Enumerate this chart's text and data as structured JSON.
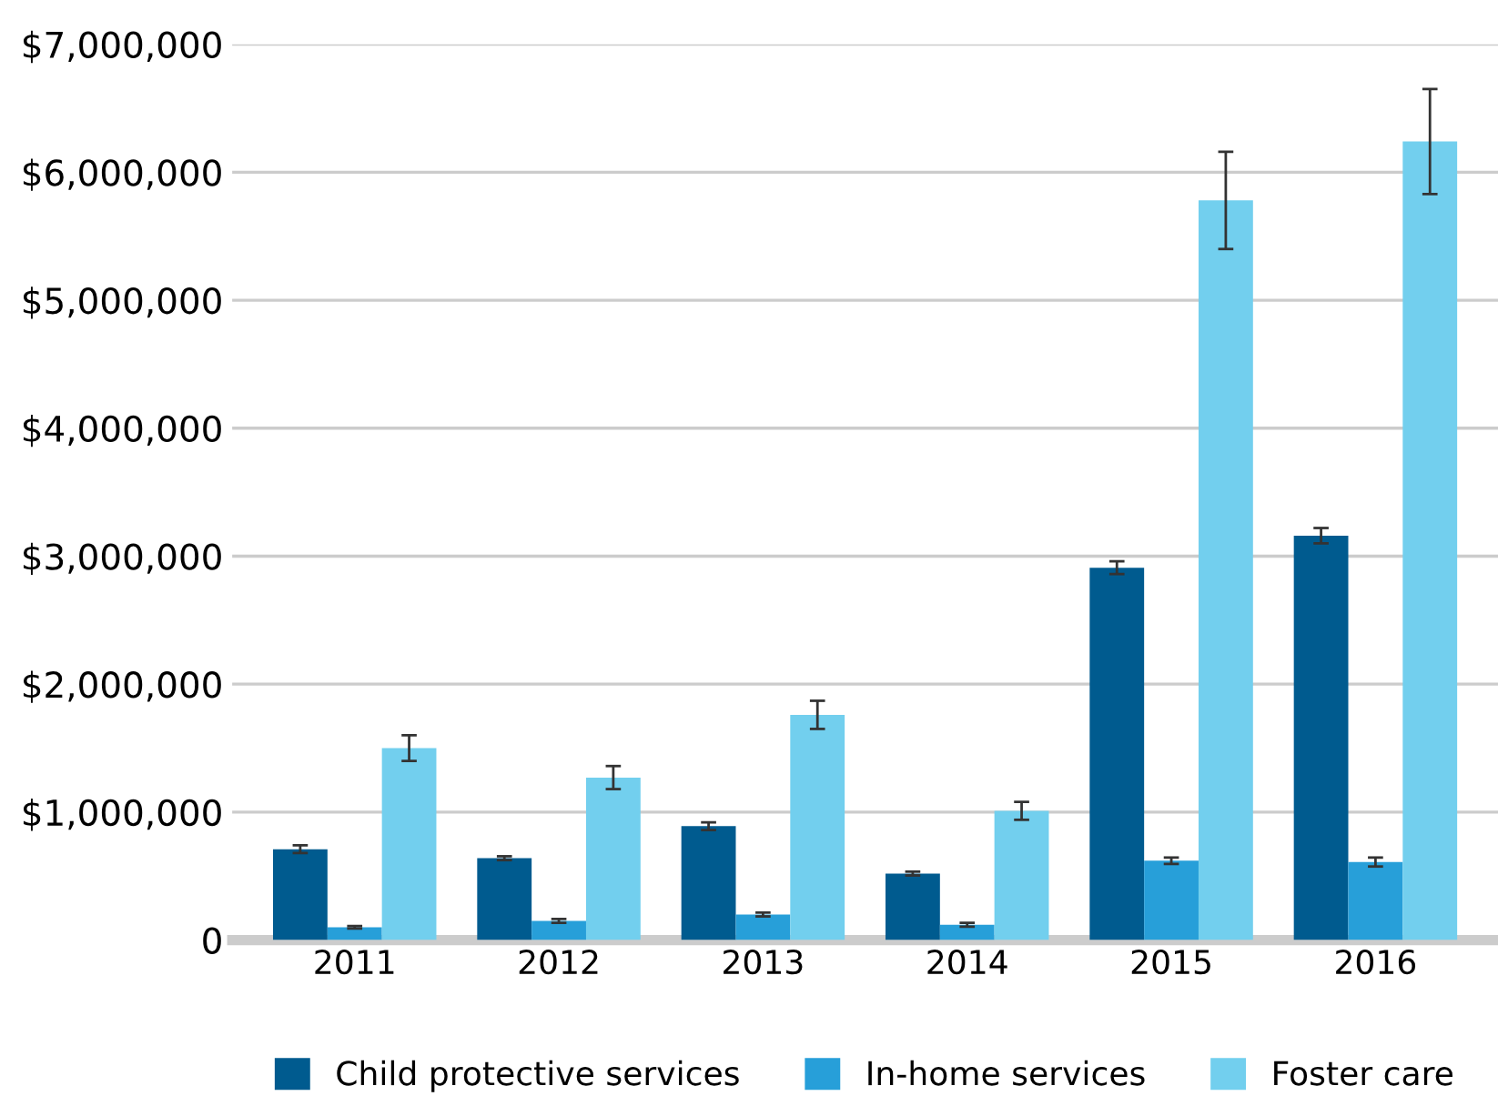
{
  "chart_data": {
    "type": "bar",
    "categories": [
      "2011",
      "2012",
      "2013",
      "2014",
      "2015",
      "2016"
    ],
    "series": [
      {
        "name": "Child protective services",
        "color": "#005b8f",
        "values": [
          710000,
          640000,
          890000,
          520000,
          2910000,
          3160000
        ],
        "errors": [
          30000,
          15000,
          30000,
          15000,
          50000,
          60000
        ]
      },
      {
        "name": "In-home services",
        "color": "#279fd9",
        "values": [
          100000,
          150000,
          200000,
          120000,
          620000,
          610000
        ],
        "errors": [
          10000,
          15000,
          15000,
          15000,
          25000,
          35000
        ]
      },
      {
        "name": "Foster care",
        "color": "#72cfee",
        "values": [
          1500000,
          1270000,
          1760000,
          1010000,
          5780000,
          6240000
        ],
        "errors": [
          100000,
          90000,
          110000,
          70000,
          380000,
          410000
        ]
      }
    ],
    "ylim": [
      0,
      7000000
    ],
    "yticks": [
      {
        "value": 0,
        "label": "0"
      },
      {
        "value": 1000000,
        "label": "$1,000,000"
      },
      {
        "value": 2000000,
        "label": "$2,000,000"
      },
      {
        "value": 3000000,
        "label": "$3,000,000"
      },
      {
        "value": 4000000,
        "label": "$4,000,000"
      },
      {
        "value": 5000000,
        "label": "$5,000,000"
      },
      {
        "value": 6000000,
        "label": "$6,000,000"
      },
      {
        "value": 7000000,
        "label": "$7,000,000"
      }
    ],
    "grid": "y",
    "legend": "bottom"
  }
}
